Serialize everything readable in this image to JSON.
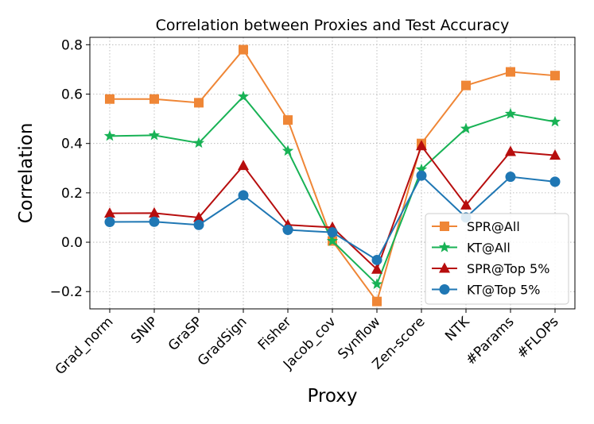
{
  "chart_data": {
    "type": "line",
    "title": "Correlation between Proxies and Test Accuracy",
    "xlabel": "Proxy",
    "ylabel": "Correlation",
    "categories": [
      "Grad_norm",
      "SNIP",
      "GraSP",
      "GradSign",
      "Fisher",
      "Jacob_cov",
      "Synflow",
      "Zen-score",
      "NTK",
      "#Params",
      "#FLOPs"
    ],
    "ylim": [
      -0.27,
      0.83
    ],
    "yticks": [
      -0.2,
      0.0,
      0.2,
      0.4,
      0.6,
      0.8
    ],
    "ytick_labels": [
      "−0.2",
      "0.0",
      "0.2",
      "0.4",
      "0.6",
      "0.8"
    ],
    "grid": true,
    "legend_position": "lower-right",
    "series": [
      {
        "name": "SPR@All",
        "color": "#ef8636",
        "marker": "square",
        "values": [
          0.58,
          0.58,
          0.565,
          0.78,
          0.495,
          0.005,
          -0.24,
          0.4,
          0.635,
          0.69,
          0.675
        ]
      },
      {
        "name": "KT@All",
        "color": "#18b255",
        "marker": "star",
        "values": [
          0.43,
          0.433,
          0.402,
          0.59,
          0.37,
          0.005,
          -0.17,
          0.295,
          0.46,
          0.52,
          0.488
        ]
      },
      {
        "name": "SPR@Top 5%",
        "color": "#b70e0e",
        "marker": "triangle",
        "values": [
          0.117,
          0.118,
          0.1,
          0.31,
          0.07,
          0.06,
          -0.11,
          0.39,
          0.15,
          0.367,
          0.352
        ]
      },
      {
        "name": "KT@Top 5%",
        "color": "#1f77b4",
        "marker": "circle",
        "values": [
          0.082,
          0.083,
          0.07,
          0.19,
          0.05,
          0.04,
          -0.072,
          0.27,
          0.1,
          0.265,
          0.245
        ]
      }
    ]
  }
}
